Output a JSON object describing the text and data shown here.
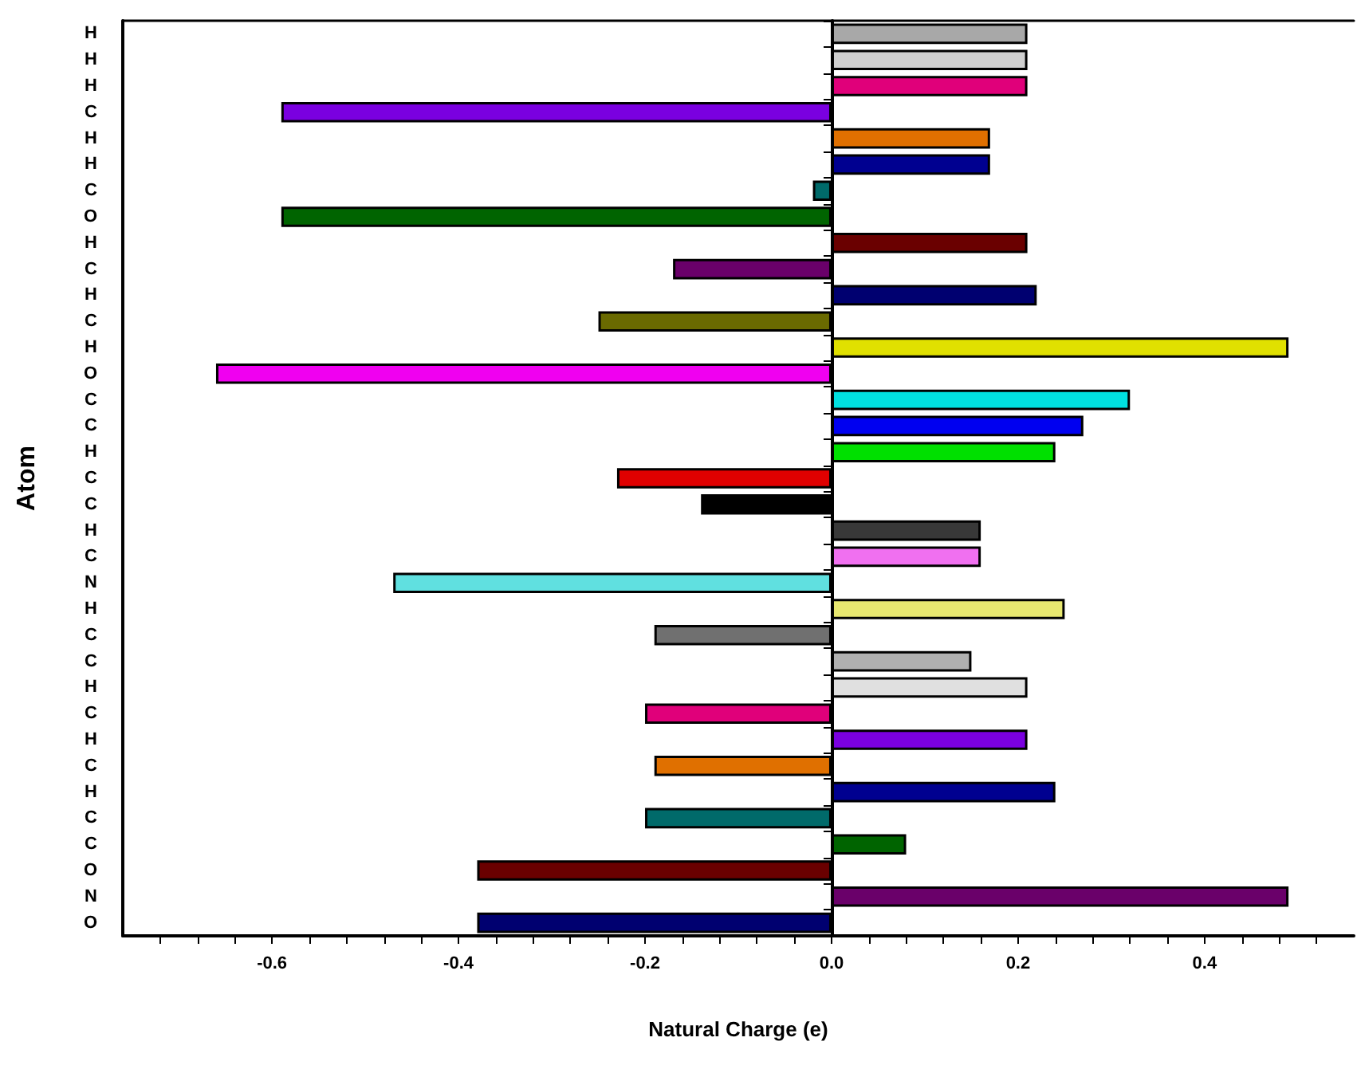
{
  "chart_data": {
    "type": "bar",
    "orientation": "horizontal",
    "xlabel": "Natural Charge (e)",
    "ylabel": "Atom",
    "categories": [
      "H",
      "H",
      "H",
      "C",
      "H",
      "H",
      "C",
      "O",
      "H",
      "C",
      "H",
      "C",
      "H",
      "O",
      "C",
      "C",
      "H",
      "C",
      "C",
      "H",
      "C",
      "N",
      "H",
      "C",
      "C",
      "H",
      "C",
      "H",
      "C",
      "H",
      "C",
      "C",
      "O",
      "N",
      "O"
    ],
    "values": [
      0.21,
      0.21,
      0.21,
      -0.59,
      0.17,
      0.17,
      -0.02,
      -0.59,
      0.21,
      -0.17,
      0.22,
      -0.25,
      0.49,
      -0.66,
      0.32,
      0.27,
      0.24,
      -0.23,
      -0.14,
      0.16,
      0.16,
      -0.47,
      0.25,
      -0.19,
      0.15,
      0.21,
      -0.2,
      0.21,
      -0.19,
      0.24,
      -0.2,
      0.08,
      -0.38,
      0.49,
      -0.38
    ],
    "colors": [
      "#a8a8a8",
      "#d0d0d0",
      "#e0007a",
      "#7a00e0",
      "#e07000",
      "#000090",
      "#006a6a",
      "#006400",
      "#6a0000",
      "#6a006a",
      "#000070",
      "#6a6a00",
      "#e0e000",
      "#f000f0",
      "#00e0e0",
      "#0000f0",
      "#00e000",
      "#e00000",
      "#000000",
      "#383838",
      "#f070f0",
      "#60e0e0",
      "#e8e870",
      "#707070",
      "#b0b0b0",
      "#e0e0e0",
      "#e0007a",
      "#7a00e0",
      "#e07000",
      "#000090",
      "#006a6a",
      "#006400",
      "#6a0000",
      "#6a006a",
      "#000070"
    ],
    "xlim": [
      -0.76,
      0.56
    ],
    "xticks": [
      {
        "value": -0.72,
        "label": null
      },
      {
        "value": -0.68,
        "label": null
      },
      {
        "value": -0.64,
        "label": null
      },
      {
        "value": -0.6,
        "label": "-0.6"
      },
      {
        "value": -0.56,
        "label": null
      },
      {
        "value": -0.52,
        "label": null
      },
      {
        "value": -0.48,
        "label": null
      },
      {
        "value": -0.44,
        "label": null
      },
      {
        "value": -0.4,
        "label": "-0.4"
      },
      {
        "value": -0.36,
        "label": null
      },
      {
        "value": -0.32,
        "label": null
      },
      {
        "value": -0.28,
        "label": null
      },
      {
        "value": -0.24,
        "label": null
      },
      {
        "value": -0.2,
        "label": "-0.2"
      },
      {
        "value": -0.16,
        "label": null
      },
      {
        "value": -0.12,
        "label": null
      },
      {
        "value": -0.08,
        "label": null
      },
      {
        "value": -0.04,
        "label": null
      },
      {
        "value": 0,
        "label": "0.0"
      },
      {
        "value": 0.04,
        "label": null
      },
      {
        "value": 0.08,
        "label": null
      },
      {
        "value": 0.12,
        "label": null
      },
      {
        "value": 0.16,
        "label": null
      },
      {
        "value": 0.2,
        "label": "0.2"
      },
      {
        "value": 0.24,
        "label": null
      },
      {
        "value": 0.28,
        "label": null
      },
      {
        "value": 0.32,
        "label": null
      },
      {
        "value": 0.36,
        "label": null
      },
      {
        "value": 0.4,
        "label": "0.4"
      },
      {
        "value": 0.44,
        "label": null
      },
      {
        "value": 0.48,
        "label": null
      },
      {
        "value": 0.52,
        "label": null
      }
    ],
    "data_labels": false
  }
}
